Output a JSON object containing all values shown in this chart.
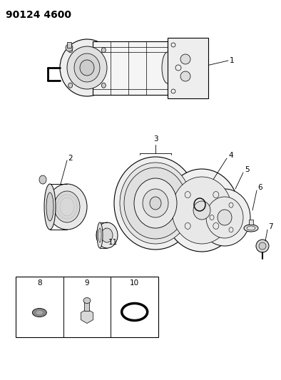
{
  "title": "90124 4600",
  "bg_color": "#ffffff",
  "line_color": "#000000",
  "title_fontsize": 10,
  "label_fontsize": 7.5,
  "fig_width": 3.94,
  "fig_height": 5.33,
  "dpi": 100
}
